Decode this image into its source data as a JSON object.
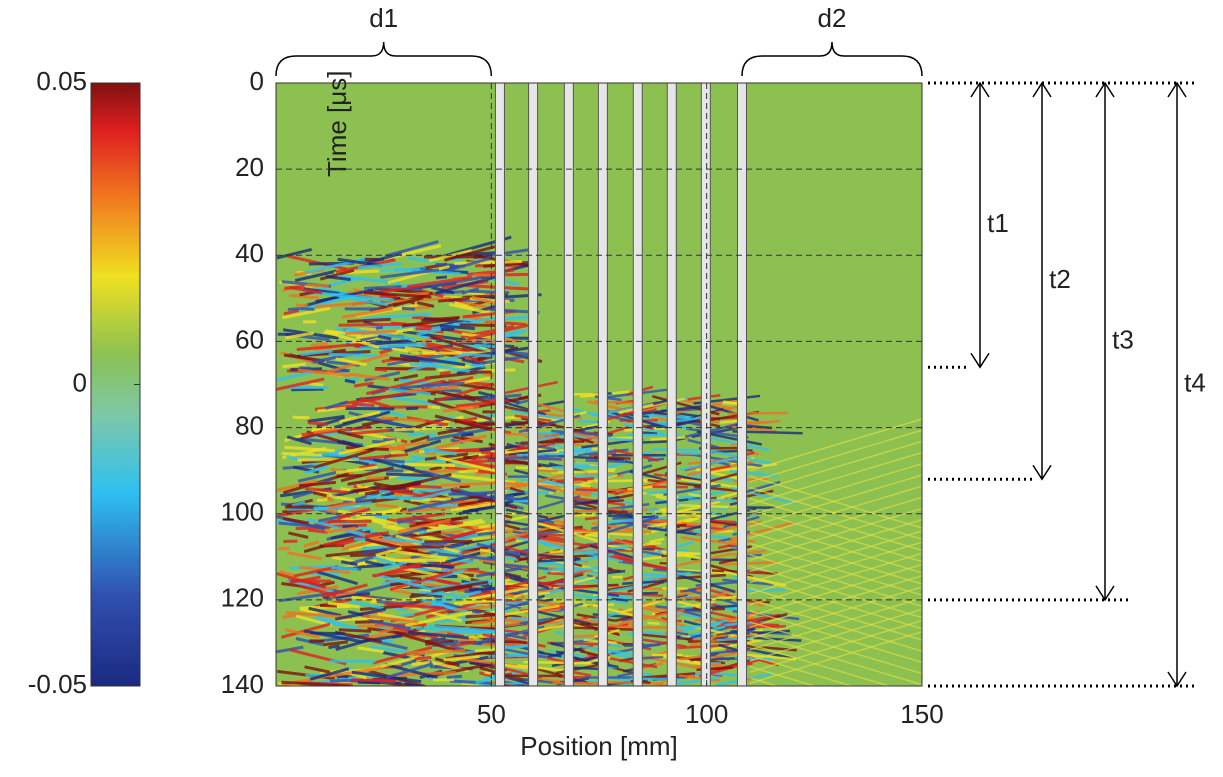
{
  "chart_data": {
    "type": "heatmap",
    "xlabel": "Position [mm]",
    "ylabel": "Time [μs]",
    "xlim": [
      0,
      150
    ],
    "xticks": [
      50,
      100,
      150
    ],
    "ylim": [
      0,
      140
    ],
    "yticks": [
      0,
      20,
      40,
      60,
      80,
      100,
      120,
      140
    ],
    "y_inverted": true,
    "grid": true,
    "grid_x": [
      50,
      100
    ],
    "gaps": [
      52,
      59.7,
      68,
      75.9,
      84,
      91.9,
      99.8,
      108.2
    ],
    "colorbar": {
      "lim": [
        -0.05,
        0.05
      ],
      "ticks": [
        -0.05,
        0,
        0.05
      ]
    },
    "spans": [
      {
        "label": "d1",
        "x": [
          0,
          50
        ]
      },
      {
        "label": "d2",
        "x": [
          108.2,
          150
        ]
      }
    ],
    "times": [
      {
        "label": "t1",
        "t": [
          0,
          66
        ]
      },
      {
        "label": "t2",
        "t": [
          0,
          92
        ]
      },
      {
        "label": "t3",
        "t": [
          0,
          120
        ]
      },
      {
        "label": "t4",
        "t": [
          0,
          140
        ]
      }
    ]
  }
}
